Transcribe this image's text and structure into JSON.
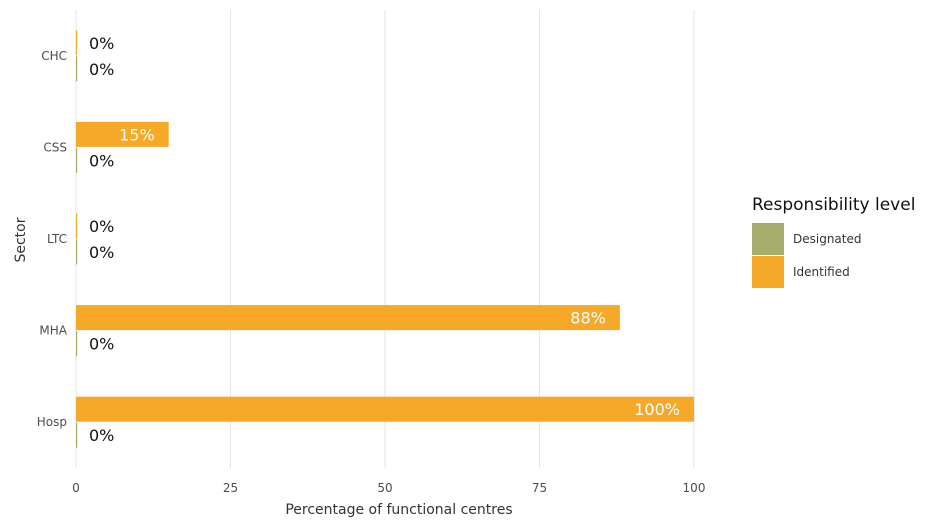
{
  "chart_data": {
    "type": "bar",
    "orientation": "horizontal",
    "categories": [
      "CHC",
      "CSS",
      "LTC",
      "MHA",
      "Hosp"
    ],
    "series": [
      {
        "name": "Designated",
        "color": "#a6ad6b",
        "values": [
          0,
          0,
          0,
          0,
          0
        ],
        "labels": [
          "0%",
          "0%",
          "0%",
          "0%",
          "0%"
        ]
      },
      {
        "name": "Identified",
        "color": "#f6a828",
        "values": [
          0,
          15,
          0,
          88,
          100
        ],
        "labels": [
          "0%",
          "15%",
          "0%",
          "88%",
          "100%"
        ]
      }
    ],
    "xlabel": "Percentage of functional centres",
    "ylabel": "Sector",
    "xlim": [
      0,
      100
    ],
    "xticks": [
      0,
      25,
      50,
      75,
      100
    ],
    "grid": true,
    "legend": {
      "title": "Responsibility level",
      "position": "right"
    }
  }
}
